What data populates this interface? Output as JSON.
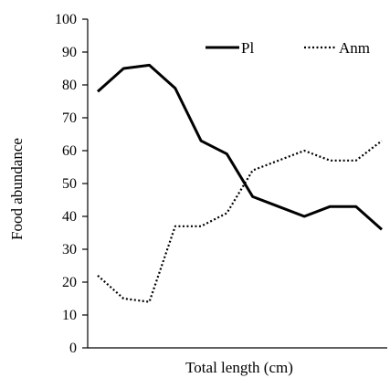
{
  "chart_data": {
    "type": "line",
    "x": [
      1,
      2,
      3,
      4,
      5,
      6,
      7,
      8,
      9,
      10,
      11,
      12
    ],
    "series": [
      {
        "name": "Pl",
        "values": [
          78,
          85,
          86,
          79,
          63,
          59,
          46,
          43,
          40,
          43,
          43,
          36
        ],
        "color": "#000000",
        "style": "solid"
      },
      {
        "name": "Anm",
        "values": [
          22,
          15,
          14,
          37,
          37,
          41,
          54,
          57,
          60,
          57,
          57,
          63
        ],
        "color": "#000000",
        "style": "dotted"
      }
    ],
    "xlabel": "Total length (cm)",
    "ylabel": "Food abundance",
    "ylim": [
      0,
      100
    ],
    "yticks": [
      0,
      10,
      20,
      30,
      40,
      50,
      60,
      70,
      80,
      90,
      100
    ],
    "grid": false,
    "legend_position": "top-right"
  }
}
